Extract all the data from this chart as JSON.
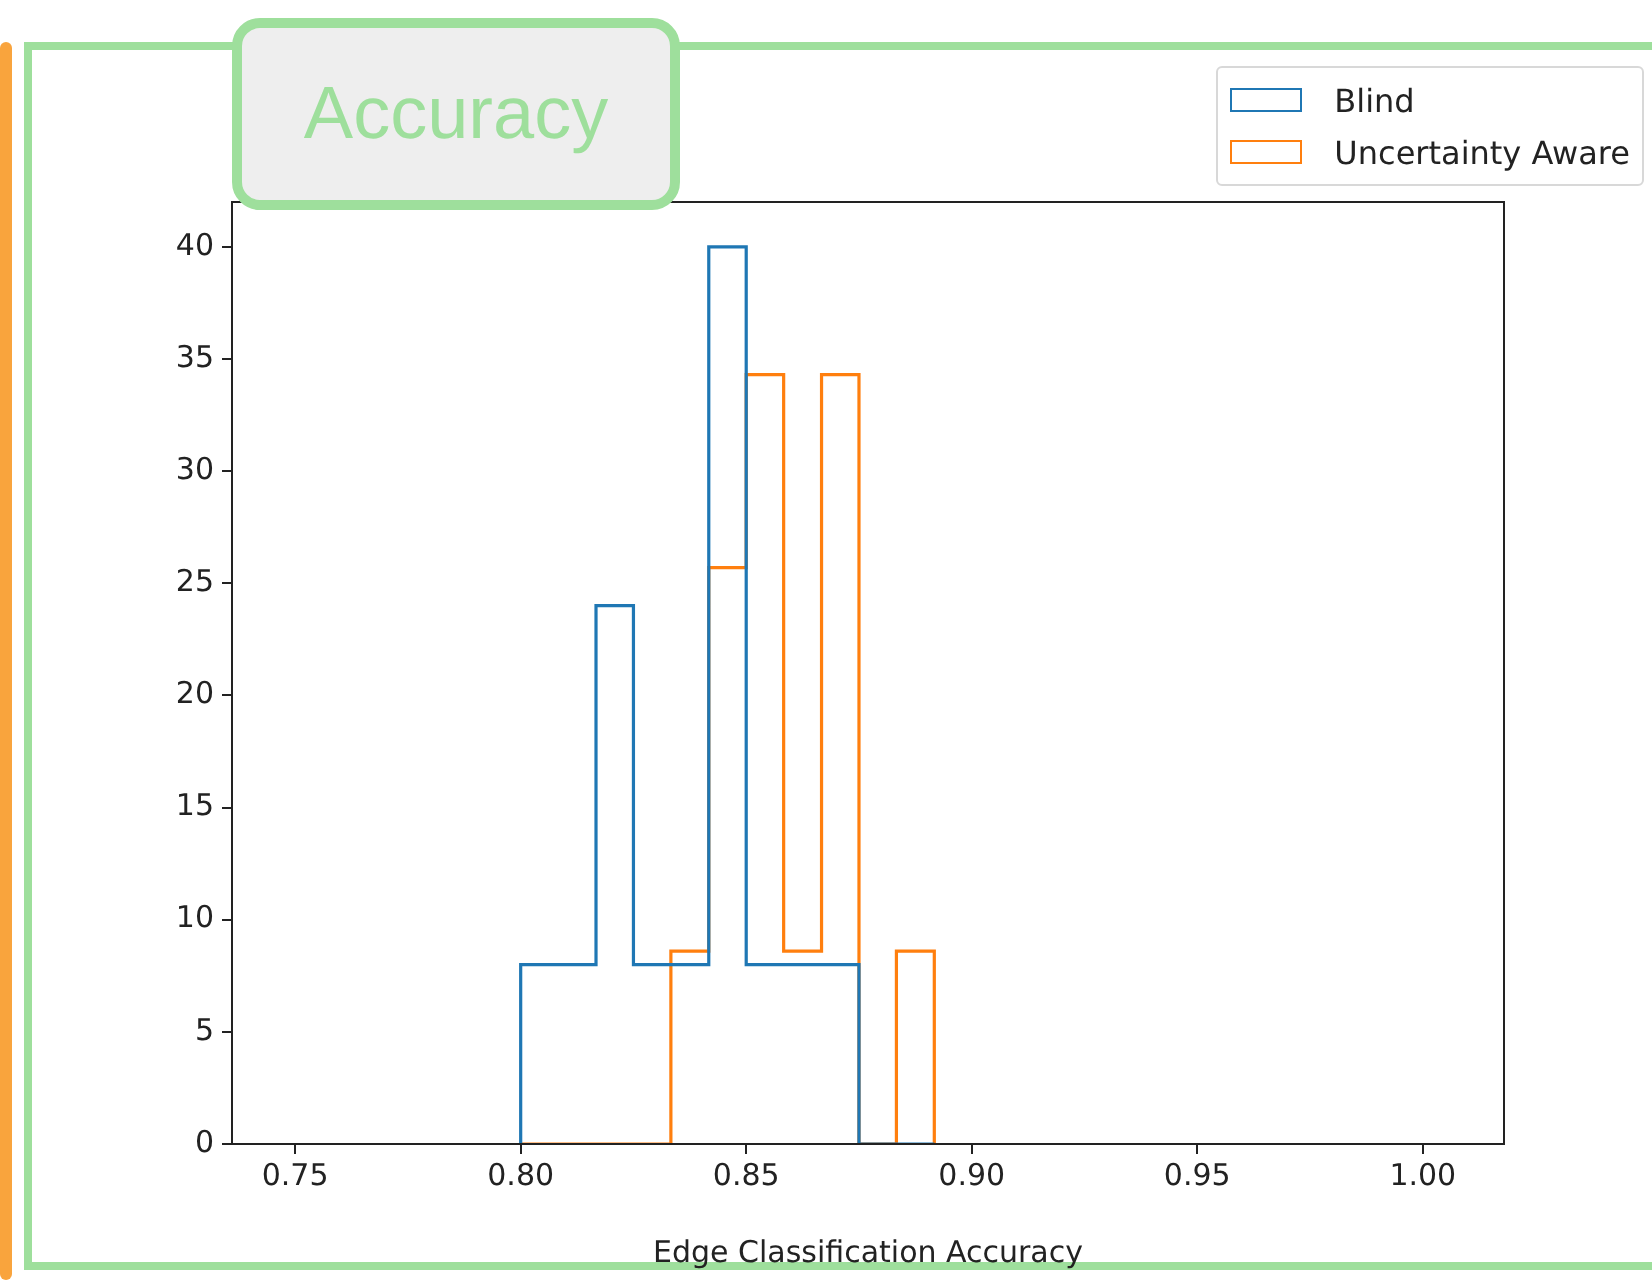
{
  "chart_data": {
    "type": "histogram",
    "title": "Accuracy",
    "xlabel": "Edge Classification Accuracy",
    "bins": [
      0.8,
      0.8083,
      0.8167,
      0.825,
      0.8333,
      0.8417,
      0.85,
      0.8583,
      0.8667,
      0.875,
      0.8833,
      0.8917
    ],
    "series": [
      {
        "name": "Blind",
        "color": "#1f77b4",
        "values": [
          8,
          8,
          24,
          8,
          8,
          40,
          8,
          8,
          8,
          0,
          0
        ]
      },
      {
        "name": "Uncertainty Aware",
        "color": "#ff7f0e",
        "values": [
          0,
          0,
          0,
          0,
          8.6,
          25.7,
          34.3,
          8.6,
          34.3,
          0,
          8.6
        ]
      }
    ],
    "xlim": [
      0.736,
      1.018
    ],
    "xticks": [
      {
        "value": 0.75,
        "label": "0.75"
      },
      {
        "value": 0.8,
        "label": "0.80"
      },
      {
        "value": 0.85,
        "label": "0.85"
      },
      {
        "value": 0.9,
        "label": "0.90"
      },
      {
        "value": 0.95,
        "label": "0.95"
      },
      {
        "value": 1,
        "label": "1.00"
      }
    ],
    "ylim": [
      0,
      42
    ],
    "yticks": [
      0,
      5,
      10,
      15,
      20,
      25,
      30,
      35,
      40
    ],
    "grid": false,
    "legend": "top right"
  }
}
